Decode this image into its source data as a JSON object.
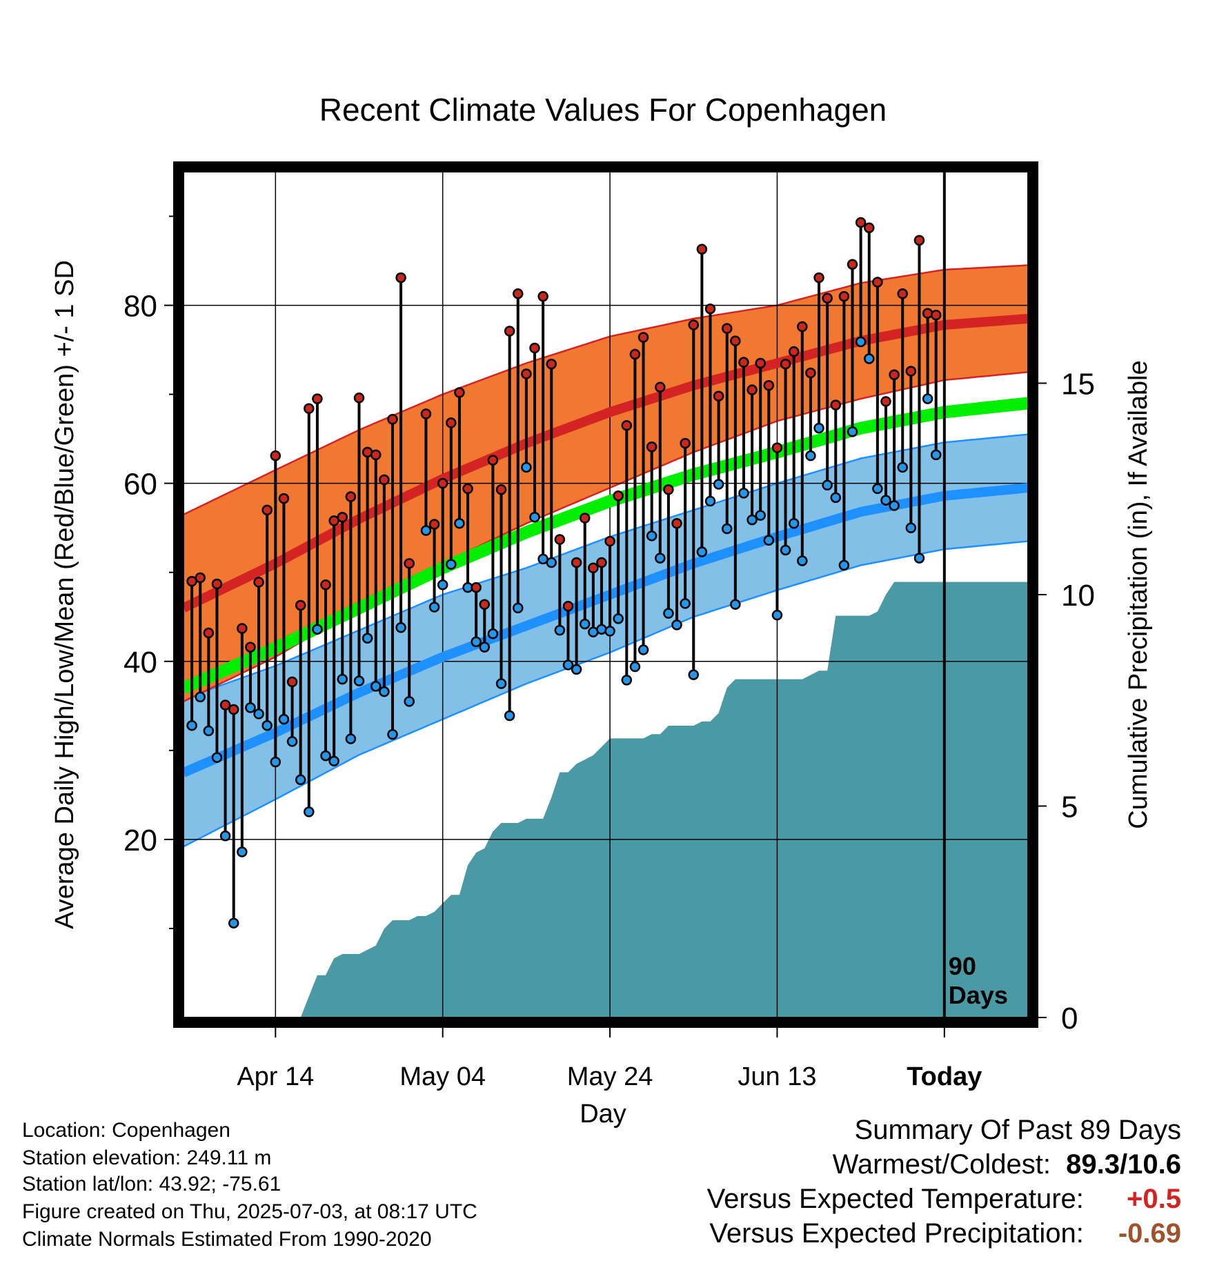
{
  "chart_data": {
    "type": "line",
    "title": "Recent Climate Values For Copenhagen",
    "xlabel": "Day",
    "ylabel": "Average Daily High/Low/Mean (Red/Blue/Green) +/- 1 SD",
    "y2label": "Cumulative Precipitation (in), If Available",
    "ylim": [
      0,
      95
    ],
    "y2lim": [
      0,
      20
    ],
    "yticks": [
      20,
      40,
      60,
      80
    ],
    "y2ticks": [
      0,
      5,
      10,
      15
    ],
    "x_ticks": [
      {
        "day": 10,
        "label": "Apr 14"
      },
      {
        "day": 30,
        "label": "May 04"
      },
      {
        "day": 50,
        "label": "May 24"
      },
      {
        "day": 70,
        "label": "Jun 13"
      },
      {
        "day": 90,
        "label": "Today"
      }
    ],
    "xlim": [
      -1,
      100
    ],
    "grid": true,
    "today_marker": {
      "day": 90,
      "label_line1": "90",
      "label_line2": "Days"
    },
    "normals": {
      "days": [
        -1,
        10,
        20,
        30,
        40,
        50,
        60,
        70,
        80,
        90,
        100
      ],
      "high_mean": [
        46,
        51,
        56,
        60.5,
        64.5,
        68,
        71,
        73.5,
        76,
        77.8,
        78.5
      ],
      "high_sd": [
        10.5,
        10.5,
        10,
        9.5,
        9,
        8.5,
        7.5,
        6.5,
        6.5,
        6.2,
        6
      ],
      "low_mean": [
        27.5,
        32,
        36.5,
        40.5,
        44,
        47.5,
        51,
        54,
        56.8,
        58.6,
        59.5
      ],
      "low_sd": [
        8.3,
        7.5,
        7,
        7,
        6.5,
        6.5,
        6,
        6,
        6,
        6,
        6
      ],
      "mean": [
        37,
        41.5,
        46,
        50.5,
        54.5,
        58,
        61,
        63.5,
        66.2,
        68,
        69
      ]
    },
    "daily": {
      "days": [
        0,
        1,
        2,
        3,
        4,
        5,
        6,
        7,
        8,
        9,
        10,
        11,
        12,
        13,
        14,
        15,
        16,
        17,
        18,
        19,
        20,
        21,
        22,
        23,
        24,
        25,
        26,
        27,
        28,
        29,
        30,
        31,
        32,
        33,
        34,
        35,
        36,
        37,
        38,
        39,
        40,
        41,
        42,
        43,
        44,
        45,
        46,
        47,
        48,
        49,
        50,
        51,
        52,
        53,
        54,
        55,
        56,
        57,
        58,
        59,
        60,
        61,
        62,
        63,
        64,
        65,
        66,
        67,
        68,
        69,
        70,
        71,
        72,
        73,
        74,
        75,
        76,
        77,
        78,
        79,
        80,
        81,
        82,
        83,
        84,
        85,
        86,
        87,
        88,
        89
      ],
      "high": [
        49,
        49.4,
        43.2,
        48.7,
        35.1,
        34.6,
        43.7,
        41.6,
        48.9,
        57,
        63.1,
        58.3,
        37.7,
        46.3,
        68.4,
        69.5,
        48.6,
        55.8,
        56.2,
        58.5,
        69.6,
        63.5,
        63.2,
        60.4,
        67.2,
        83.1,
        51,
        null,
        67.8,
        55.4,
        60,
        66.8,
        70.2,
        59.4,
        48.3,
        46.4,
        62.6,
        59.3,
        77.1,
        81.3,
        72.3,
        75.2,
        81,
        73.4,
        53.7,
        46.2,
        51.1,
        56.1,
        50.5,
        51.1,
        53.5,
        58.6,
        66.5,
        74.5,
        76.4,
        64.1,
        70.8,
        59.3,
        55.5,
        64.5,
        77.8,
        86.3,
        79.6,
        69.8,
        77.4,
        76,
        73.6,
        70.5,
        73.5,
        71,
        64,
        73.4,
        74.8,
        77.6,
        72.4,
        83.1,
        80.8,
        68.8,
        81,
        84.6,
        89.3,
        88.7,
        82.6,
        69.2,
        72.2,
        81.3,
        72.6,
        87.3,
        79.1,
        78.9
      ],
      "low": [
        32.8,
        36,
        32.2,
        29.2,
        20.4,
        10.6,
        18.6,
        34.8,
        34.1,
        32.8,
        28.7,
        33.5,
        31,
        26.7,
        23.1,
        43.6,
        29.4,
        28.8,
        38,
        31.3,
        37.8,
        42.6,
        37.2,
        36.6,
        31.8,
        43.8,
        35.5,
        null,
        54.7,
        46.1,
        48.6,
        50.9,
        55.5,
        48.3,
        42.2,
        41.6,
        43.1,
        37.5,
        33.9,
        46,
        61.8,
        56.2,
        51.5,
        51.1,
        43.5,
        39.6,
        39.1,
        44.2,
        43.3,
        43.6,
        43.4,
        44.8,
        37.9,
        39.4,
        41.3,
        54.1,
        51.6,
        45.4,
        44.1,
        46.5,
        38.5,
        52.3,
        58,
        59.9,
        54.9,
        46.4,
        58.9,
        55.9,
        56.4,
        53.6,
        45.2,
        52.5,
        55.5,
        51.3,
        63.1,
        66.2,
        59.8,
        58.4,
        50.8,
        65.8,
        75.9,
        74,
        59.4,
        58.1,
        57.5,
        61.8,
        55,
        51.6,
        69.5,
        63.2
      ]
    },
    "precip": {
      "days": [
        -1,
        13,
        14,
        15,
        16,
        17,
        18,
        19,
        20,
        21,
        22,
        23,
        24,
        25,
        26,
        27,
        28,
        29,
        30,
        31,
        32,
        33,
        34,
        35,
        36,
        37,
        38,
        39,
        40,
        41,
        42,
        43,
        44,
        45,
        46,
        47,
        48,
        49,
        50,
        51,
        52,
        53,
        54,
        55,
        56,
        57,
        58,
        59,
        60,
        61,
        62,
        63,
        64,
        65,
        66,
        67,
        68,
        69,
        70,
        71,
        72,
        73,
        74,
        75,
        76,
        77,
        78,
        79,
        80,
        81,
        82,
        83,
        84,
        85,
        86,
        87,
        88,
        89,
        90,
        100
      ],
      "cumulative": [
        0,
        0,
        0.5,
        1,
        1,
        1.4,
        1.5,
        1.5,
        1.5,
        1.6,
        1.7,
        2.1,
        2.3,
        2.3,
        2.3,
        2.4,
        2.4,
        2.5,
        2.7,
        2.9,
        2.9,
        3.6,
        3.9,
        4,
        4.4,
        4.6,
        4.6,
        4.6,
        4.7,
        4.7,
        4.7,
        5.2,
        5.8,
        5.8,
        6,
        6.1,
        6.2,
        6.4,
        6.6,
        6.6,
        6.6,
        6.6,
        6.6,
        6.7,
        6.7,
        6.9,
        6.9,
        6.9,
        6.9,
        7,
        7,
        7.2,
        7.8,
        8,
        8,
        8,
        8,
        8,
        8,
        8,
        8,
        8,
        8.1,
        8.2,
        8.2,
        9.5,
        9.5,
        9.5,
        9.5,
        9.5,
        9.6,
        10,
        10.3,
        10.3,
        10.3,
        10.3,
        10.3,
        10.3,
        10.3,
        10.3
      ]
    }
  },
  "footer": {
    "location": "Location: Copenhagen",
    "elevation": "Station elevation: 249.11 m",
    "latlon": "Station lat/lon: 43.92; -75.61",
    "created": "Figure created on Thu, 2025-07-03, at 08:17 UTC",
    "normals_source": "Climate Normals Estimated From 1990-2020"
  },
  "summary": {
    "heading": "Summary Of Past 89 Days",
    "warmest_coldest_label": "Warmest/Coldest:",
    "warmest_coldest_value": "89.3/10.6",
    "temp_label": "Versus Expected Temperature:",
    "temp_value": "+0.5",
    "precip_label": "Versus Expected Precipitation:",
    "precip_value": "-0.69",
    "colors": {
      "temp_value": "#d42323",
      "precip_value": "#a0522d"
    }
  },
  "colors": {
    "high_band": "#f07830",
    "high_line": "#d42323",
    "low_band": "#82c0e8",
    "low_line": "#1e90ff",
    "mean_line": "#00ee00",
    "precip_fill": "#4a9aa6",
    "high_dot": "#c8281e",
    "low_dot": "#2896e6"
  }
}
